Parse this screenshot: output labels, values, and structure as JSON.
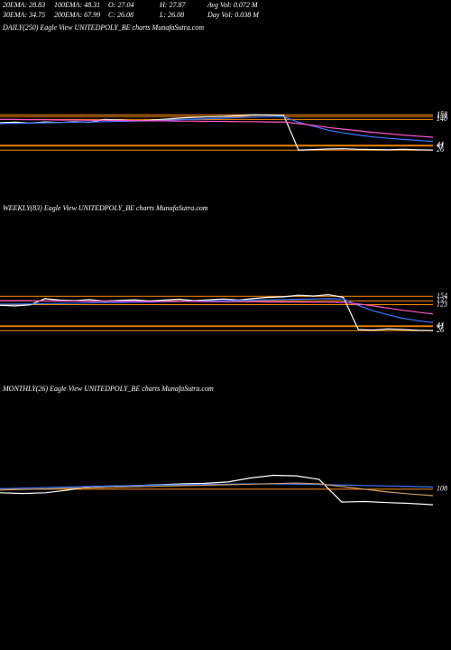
{
  "header": {
    "stats": [
      "20EMA: 28.83",
      "100EMA: 48.31",
      "O: 27.04",
      "H: 27.87",
      "Avg Vol: 0.072  M",
      "30EMA: 34.75",
      "200EMA: 67.99",
      "C: 26.08",
      "L: 26.08",
      "Day Vol: 0.038 M"
    ]
  },
  "chart_data": [
    {
      "type": "line",
      "title": "DAILY(250) Eagle   View   UNITEDPOLY_BE charts MunafaSutra.com",
      "ylim": [
        20,
        165
      ],
      "yticks": [
        26,
        41,
        44,
        140,
        151,
        158
      ],
      "tick_color": "#ff8c00",
      "series": [
        {
          "color": "#ffffff",
          "values": [
            128,
            130,
            127,
            131,
            129,
            132,
            130,
            140,
            138,
            135,
            137,
            141,
            145,
            148,
            150,
            152,
            155,
            158,
            157,
            156,
            26,
            28,
            30,
            31,
            29,
            28,
            27,
            29,
            27,
            26
          ]
        },
        {
          "color": "#3a78ff",
          "values": [
            125,
            126,
            127,
            128,
            129,
            130,
            131,
            132,
            133,
            134,
            135,
            137,
            139,
            141,
            143,
            145,
            147,
            149,
            150,
            151,
            130,
            115,
            100,
            90,
            82,
            75,
            70,
            66,
            62,
            58
          ]
        },
        {
          "color": "#ff55cc",
          "values": [
            140,
            140,
            139,
            139,
            138,
            138,
            137,
            137,
            136,
            136,
            135,
            135,
            134,
            134,
            133,
            133,
            132,
            132,
            131,
            131,
            125,
            118,
            110,
            104,
            98,
            92,
            87,
            82,
            78,
            74
          ]
        }
      ]
    },
    {
      "type": "line",
      "title": "WEEKLY(83) Eagle   View   UNITEDPOLY_BE charts MunafaSutra.com",
      "ylim": [
        20,
        165
      ],
      "yticks": [
        26,
        41,
        44,
        123,
        137,
        154
      ],
      "tick_color": "#ff8c00",
      "series": [
        {
          "color": "#ffffff",
          "values": [
            120,
            118,
            122,
            145,
            140,
            138,
            142,
            136,
            139,
            141,
            137,
            140,
            143,
            138,
            141,
            144,
            140,
            146,
            150,
            152,
            158,
            155,
            160,
            150,
            30,
            28,
            32,
            30,
            27,
            26
          ]
        },
        {
          "color": "#3a78ff",
          "values": [
            125,
            125,
            126,
            127,
            128,
            129,
            130,
            131,
            131,
            132,
            133,
            134,
            135,
            136,
            137,
            138,
            139,
            140,
            141,
            142,
            143,
            144,
            145,
            144,
            120,
            100,
            85,
            72,
            63,
            56
          ]
        },
        {
          "color": "#ff55cc",
          "values": [
            138,
            138,
            138,
            137,
            137,
            137,
            136,
            136,
            136,
            136,
            135,
            135,
            135,
            135,
            134,
            134,
            134,
            134,
            133,
            133,
            133,
            132,
            132,
            131,
            126,
            118,
            110,
            102,
            95,
            88
          ]
        }
      ]
    },
    {
      "type": "line",
      "title": "MONTHLY(26) Eagle   View   UNITEDPOLY_BE charts MunafaSutra.com",
      "ylim": [
        20,
        165
      ],
      "yticks": [
        108
      ],
      "tick_color": "#ff8c00",
      "series": [
        {
          "color": "#ffffff",
          "values": [
            95,
            92,
            95,
            105,
            118,
            120,
            122,
            125,
            128,
            130,
            135,
            150,
            160,
            158,
            145,
            60,
            62,
            58,
            55,
            50
          ]
        },
        {
          "color": "#3a78ff",
          "values": [
            110,
            112,
            114,
            116,
            118,
            120,
            122,
            124,
            125,
            126,
            127,
            128,
            128,
            127,
            126,
            124,
            122,
            120,
            118,
            116
          ]
        },
        {
          "color": "#cc9966",
          "values": [
            105,
            107,
            109,
            111,
            113,
            115,
            117,
            119,
            121,
            123,
            125,
            127,
            129,
            131,
            128,
            118,
            108,
            98,
            90,
            84
          ]
        }
      ]
    }
  ]
}
